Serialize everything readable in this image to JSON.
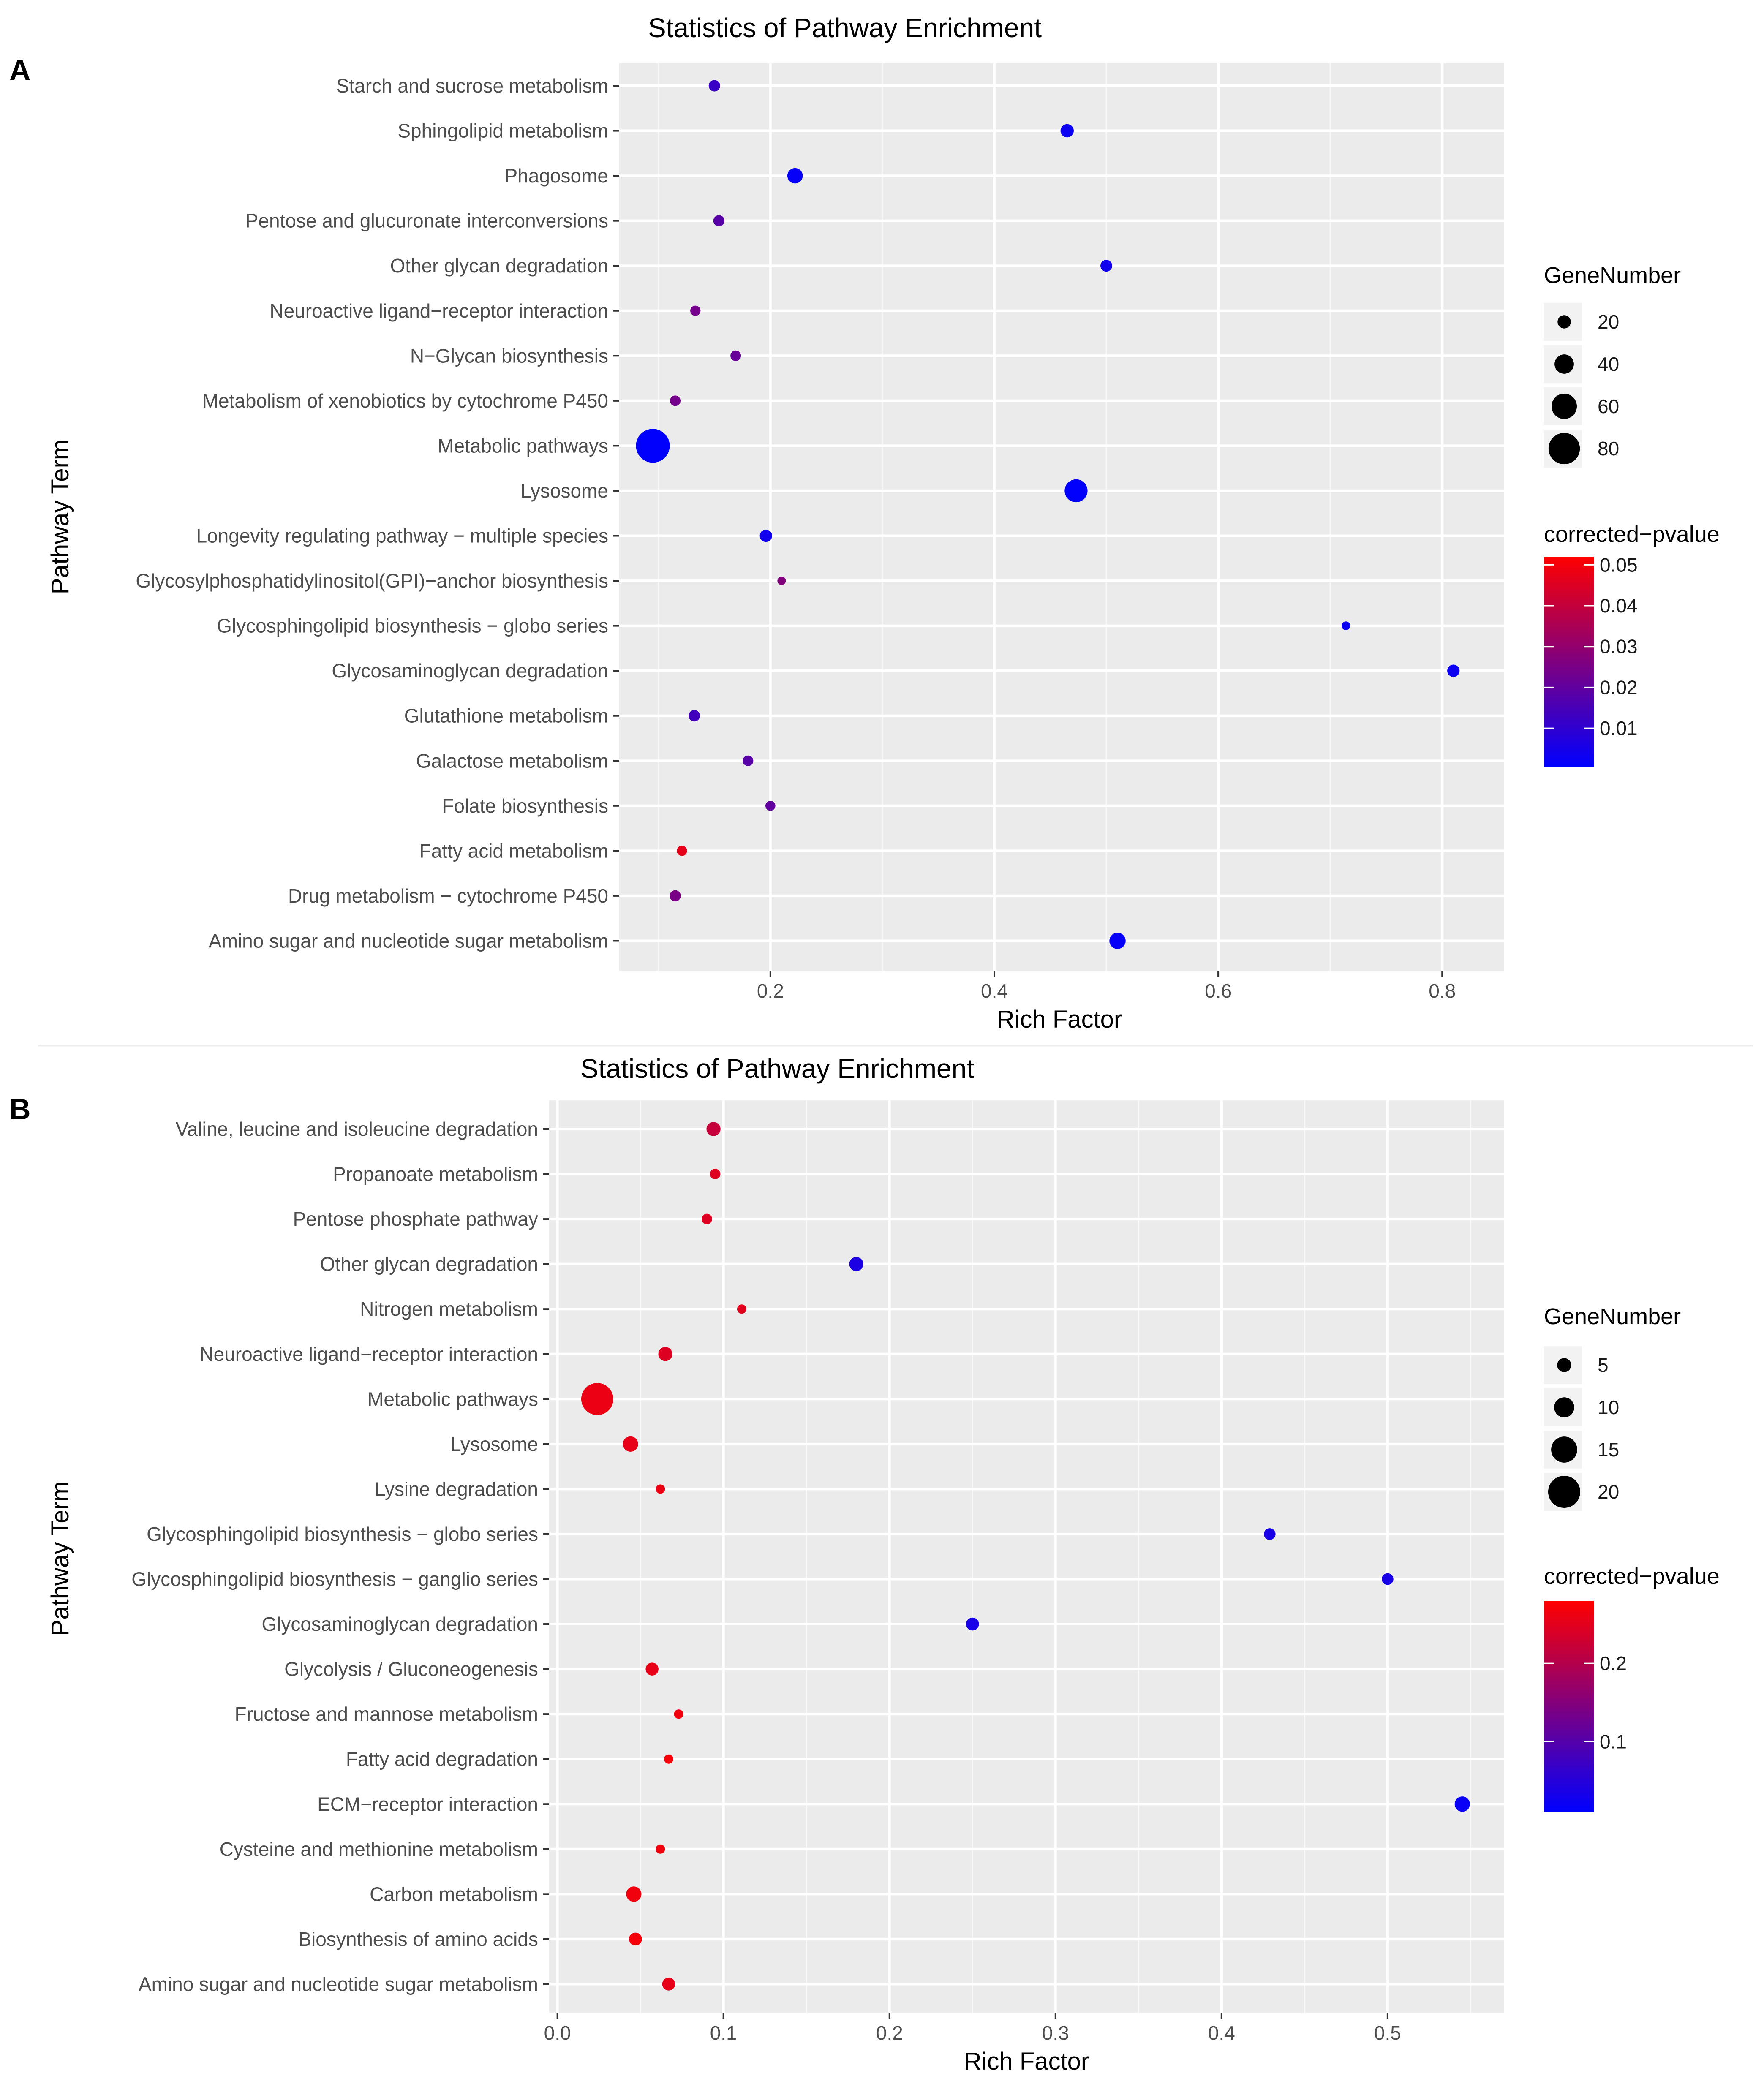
{
  "panels": [
    {
      "label": "A"
    },
    {
      "label": "B"
    }
  ],
  "chart_data": [
    {
      "type": "scatter",
      "panel": "A",
      "title": "Statistics of Pathway Enrichment",
      "xlabel": "Rich Factor",
      "ylabel": "Pathway Term",
      "xlim": [
        0.065,
        0.855
      ],
      "x_ticks": [
        0.2,
        0.4,
        0.6,
        0.8
      ],
      "x_tick_labels": [
        "0.2",
        "0.4",
        "0.6",
        "0.8"
      ],
      "grid": true,
      "legend_position": "right",
      "categories": [
        "Starch and sucrose metabolism",
        "Sphingolipid metabolism",
        "Phagosome",
        "Pentose and glucuronate interconversions",
        "Other glycan degradation",
        "Neuroactive ligand−receptor interaction",
        "N−Glycan biosynthesis",
        "Metabolism of xenobiotics by cytochrome P450",
        "Metabolic pathways",
        "Lysosome",
        "Longevity regulating pathway − multiple species",
        "Glycosylphosphatidylinositol(GPI)−anchor biosynthesis",
        "Glycosphingolipid biosynthesis − globo series",
        "Glycosaminoglycan degradation",
        "Glutathione metabolism",
        "Galactose metabolism",
        "Folate biosynthesis",
        "Fatty acid metabolism",
        "Drug metabolism − cytochrome P450",
        "Amino sugar and nucleotide sugar metabolism"
      ],
      "points": [
        {
          "term": "Starch and sucrose metabolism",
          "rich_factor": 0.15,
          "gene_number": 14,
          "pvalue": 0.012
        },
        {
          "term": "Sphingolipid metabolism",
          "rich_factor": 0.465,
          "gene_number": 20,
          "pvalue": 0.003
        },
        {
          "term": "Phagosome",
          "rich_factor": 0.222,
          "gene_number": 27,
          "pvalue": 0.002
        },
        {
          "term": "Pentose and glucuronate interconversions",
          "rich_factor": 0.154,
          "gene_number": 13,
          "pvalue": 0.018
        },
        {
          "term": "Other glycan degradation",
          "rich_factor": 0.5,
          "gene_number": 15,
          "pvalue": 0.004
        },
        {
          "term": "Neuroactive ligand−receptor interaction",
          "rich_factor": 0.133,
          "gene_number": 10,
          "pvalue": 0.024
        },
        {
          "term": "N−Glycan biosynthesis",
          "rich_factor": 0.169,
          "gene_number": 11,
          "pvalue": 0.021
        },
        {
          "term": "Metabolism of xenobiotics by cytochrome P450",
          "rich_factor": 0.115,
          "gene_number": 11,
          "pvalue": 0.024
        },
        {
          "term": "Metabolic pathways",
          "rich_factor": 0.095,
          "gene_number": 88,
          "pvalue": 0.001
        },
        {
          "term": "Lysosome",
          "rich_factor": 0.473,
          "gene_number": 52,
          "pvalue": 0.001
        },
        {
          "term": "Longevity regulating pathway − multiple species",
          "rich_factor": 0.196,
          "gene_number": 17,
          "pvalue": 0.004
        },
        {
          "term": "Glycosylphosphatidylinositol(GPI)−anchor biosynthesis",
          "rich_factor": 0.21,
          "gene_number": 4,
          "pvalue": 0.027
        },
        {
          "term": "Glycosphingolipid biosynthesis − globo series",
          "rich_factor": 0.714,
          "gene_number": 5,
          "pvalue": 0.003
        },
        {
          "term": "Glycosaminoglycan degradation",
          "rich_factor": 0.81,
          "gene_number": 17,
          "pvalue": 0.003
        },
        {
          "term": "Glutathione metabolism",
          "rich_factor": 0.132,
          "gene_number": 14,
          "pvalue": 0.014
        },
        {
          "term": "Galactose metabolism",
          "rich_factor": 0.18,
          "gene_number": 11,
          "pvalue": 0.018
        },
        {
          "term": "Folate biosynthesis",
          "rich_factor": 0.2,
          "gene_number": 9,
          "pvalue": 0.02
        },
        {
          "term": "Fatty acid metabolism",
          "rich_factor": 0.121,
          "gene_number": 10,
          "pvalue": 0.047
        },
        {
          "term": "Drug metabolism − cytochrome P450",
          "rich_factor": 0.115,
          "gene_number": 13,
          "pvalue": 0.025
        },
        {
          "term": "Amino sugar and nucleotide sugar metabolism",
          "rich_factor": 0.51,
          "gene_number": 30,
          "pvalue": 0.002
        }
      ],
      "size_legend": {
        "title": "GeneNumber",
        "breaks": [
          20,
          40,
          60,
          80
        ],
        "labels": [
          "20",
          "40",
          "60",
          "80"
        ],
        "range": [
          4,
          88
        ]
      },
      "color_legend": {
        "title": "corrected−pvalue",
        "ticks": [
          0.05,
          0.04,
          0.03,
          0.02,
          0.01
        ],
        "labels": [
          "0.05",
          "0.04",
          "0.03",
          "0.02",
          "0.01"
        ],
        "min": 0.0005,
        "max": 0.052,
        "low_color": "#0000ff",
        "high_color": "#ff0000"
      }
    },
    {
      "type": "scatter",
      "panel": "B",
      "title": "Statistics of Pathway Enrichment",
      "xlabel": "Rich Factor",
      "ylabel": "Pathway Term",
      "xlim": [
        -0.005,
        0.57
      ],
      "x_ticks": [
        0.0,
        0.1,
        0.2,
        0.3,
        0.4,
        0.5
      ],
      "x_tick_labels": [
        "0.0",
        "0.1",
        "0.2",
        "0.3",
        "0.4",
        "0.5"
      ],
      "grid": true,
      "legend_position": "right",
      "categories": [
        "Valine, leucine and isoleucine degradation",
        "Propanoate metabolism",
        "Pentose phosphate pathway",
        "Other glycan degradation",
        "Nitrogen metabolism",
        "Neuroactive ligand−receptor interaction",
        "Metabolic pathways",
        "Lysosome",
        "Lysine degradation",
        "Glycosphingolipid biosynthesis − globo series",
        "Glycosphingolipid biosynthesis − ganglio series",
        "Glycosaminoglycan degradation",
        "Glycolysis / Gluconeogenesis",
        "Fructose and mannose metabolism",
        "Fatty acid degradation",
        "ECM−receptor interaction",
        "Cysteine and methionine metabolism",
        "Carbon metabolism",
        "Biosynthesis of amino acids",
        "Amino sugar and nucleotide sugar metabolism"
      ],
      "points": [
        {
          "term": "Valine, leucine and isoleucine degradation",
          "rich_factor": 0.094,
          "gene_number": 5,
          "pvalue": 0.22
        },
        {
          "term": "Propanoate metabolism",
          "rich_factor": 0.095,
          "gene_number": 2,
          "pvalue": 0.245
        },
        {
          "term": "Pentose phosphate pathway",
          "rich_factor": 0.09,
          "gene_number": 2,
          "pvalue": 0.245
        },
        {
          "term": "Other glycan degradation",
          "rich_factor": 0.18,
          "gene_number": 5,
          "pvalue": 0.04
        },
        {
          "term": "Nitrogen metabolism",
          "rich_factor": 0.111,
          "gene_number": 1,
          "pvalue": 0.25
        },
        {
          "term": "Neuroactive ligand−receptor interaction",
          "rich_factor": 0.065,
          "gene_number": 5,
          "pvalue": 0.245
        },
        {
          "term": "Metabolic pathways",
          "rich_factor": 0.024,
          "gene_number": 20,
          "pvalue": 0.26
        },
        {
          "term": "Lysosome",
          "rich_factor": 0.044,
          "gene_number": 6,
          "pvalue": 0.255
        },
        {
          "term": "Lysine degradation",
          "rich_factor": 0.062,
          "gene_number": 1,
          "pvalue": 0.26
        },
        {
          "term": "Glycosphingolipid biosynthesis − globo series",
          "rich_factor": 0.429,
          "gene_number": 3,
          "pvalue": 0.035
        },
        {
          "term": "Glycosphingolipid biosynthesis − ganglio series",
          "rich_factor": 0.5,
          "gene_number": 3,
          "pvalue": 0.035
        },
        {
          "term": "Glycosaminoglycan degradation",
          "rich_factor": 0.25,
          "gene_number": 4,
          "pvalue": 0.035
        },
        {
          "term": "Glycolysis / Gluconeogenesis",
          "rich_factor": 0.057,
          "gene_number": 4,
          "pvalue": 0.255
        },
        {
          "term": "Fructose and mannose metabolism",
          "rich_factor": 0.073,
          "gene_number": 1,
          "pvalue": 0.265
        },
        {
          "term": "Fatty acid degradation",
          "rich_factor": 0.067,
          "gene_number": 1,
          "pvalue": 0.27
        },
        {
          "term": "ECM−receptor interaction",
          "rich_factor": 0.545,
          "gene_number": 6,
          "pvalue": 0.02
        },
        {
          "term": "Cysteine and methionine metabolism",
          "rich_factor": 0.062,
          "gene_number": 1,
          "pvalue": 0.265
        },
        {
          "term": "Carbon metabolism",
          "rich_factor": 0.046,
          "gene_number": 6,
          "pvalue": 0.265
        },
        {
          "term": "Biosynthesis of amino acids",
          "rich_factor": 0.047,
          "gene_number": 4,
          "pvalue": 0.27
        },
        {
          "term": "Amino sugar and nucleotide sugar metabolism",
          "rich_factor": 0.067,
          "gene_number": 4,
          "pvalue": 0.255
        }
      ],
      "size_legend": {
        "title": "GeneNumber",
        "breaks": [
          5,
          10,
          15,
          20
        ],
        "labels": [
          "5",
          "10",
          "15",
          "20"
        ],
        "range": [
          1,
          20
        ]
      },
      "color_legend": {
        "title": "corrected−pvalue",
        "ticks": [
          0.2,
          0.1
        ],
        "labels": [
          "0.2",
          "0.1"
        ],
        "min": 0.01,
        "max": 0.28,
        "low_color": "#0000ff",
        "high_color": "#ff0000"
      }
    }
  ]
}
